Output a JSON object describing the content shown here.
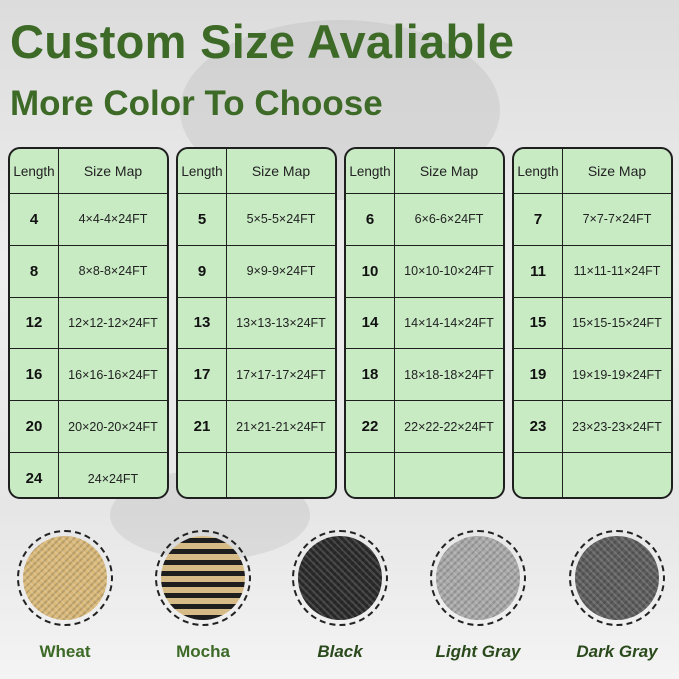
{
  "title": "Custom Size Avaliable",
  "subtitle": "More Color To Choose",
  "table_headers": {
    "length": "Length",
    "size": "Size Map"
  },
  "tables": [
    [
      [
        "4",
        "4×4-4×24FT"
      ],
      [
        "8",
        "8×8-8×24FT"
      ],
      [
        "12",
        "12×12-12×24FT"
      ],
      [
        "16",
        "16×16-16×24FT"
      ],
      [
        "20",
        "20×20-20×24FT"
      ],
      [
        "24",
        "24×24FT"
      ]
    ],
    [
      [
        "5",
        "5×5-5×24FT"
      ],
      [
        "9",
        "9×9-9×24FT"
      ],
      [
        "13",
        "13×13-13×24FT"
      ],
      [
        "17",
        "17×17-17×24FT"
      ],
      [
        "21",
        "21×21-21×24FT"
      ],
      [
        "",
        ""
      ]
    ],
    [
      [
        "6",
        "6×6-6×24FT"
      ],
      [
        "10",
        "10×10-10×24FT"
      ],
      [
        "14",
        "14×14-14×24FT"
      ],
      [
        "18",
        "18×18-18×24FT"
      ],
      [
        "22",
        "22×22-22×24FT"
      ],
      [
        "",
        ""
      ]
    ],
    [
      [
        "7",
        "7×7-7×24FT"
      ],
      [
        "11",
        "11×11-11×24FT"
      ],
      [
        "15",
        "15×15-15×24FT"
      ],
      [
        "19",
        "19×19-19×24FT"
      ],
      [
        "23",
        "23×23-23×24FT"
      ],
      [
        "",
        ""
      ]
    ]
  ],
  "colors": [
    {
      "name": "Wheat",
      "swatch": "#d9b878"
    },
    {
      "name": "Mocha",
      "swatch": "#8a7456"
    },
    {
      "name": "Black",
      "swatch": "#2b2b2b"
    },
    {
      "name": "Light Gray",
      "swatch": "#a9a9a9"
    },
    {
      "name": "Dark Gray",
      "swatch": "#5d5d5d"
    }
  ],
  "accent": "#3d6a27",
  "table_fill": "#c8ebc4"
}
